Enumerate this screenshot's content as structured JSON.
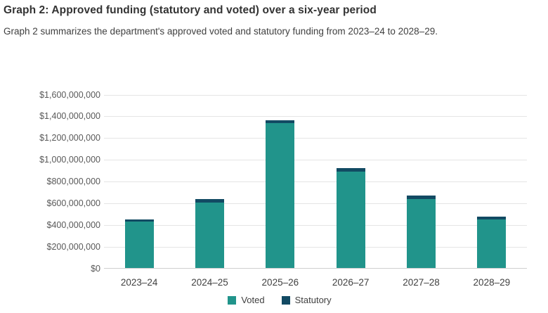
{
  "header": {
    "title": "Graph 2: Approved funding (statutory and voted) over a six-year period",
    "subtitle": "Graph 2 summarizes the department's approved voted and statutory funding from 2023–24 to 2028–29."
  },
  "chart_data": {
    "type": "bar",
    "stacked": true,
    "categories": [
      "2023–24",
      "2024–25",
      "2025–26",
      "2026–27",
      "2027–28",
      "2028–29"
    ],
    "series": [
      {
        "name": "Voted",
        "color": "#21948b",
        "values": [
          430000000,
          605000000,
          1335000000,
          890000000,
          635000000,
          445000000
        ]
      },
      {
        "name": "Statutory",
        "color": "#124a63",
        "values": [
          20000000,
          30000000,
          25000000,
          30000000,
          30000000,
          25000000
        ]
      }
    ],
    "totals": [
      450000000,
      635000000,
      1360000000,
      920000000,
      665000000,
      470000000
    ],
    "ylim": [
      0,
      1600000000
    ],
    "y_tick_step": 200000000,
    "y_tick_labels": [
      "$0",
      "$200,000,000",
      "$400,000,000",
      "$600,000,000",
      "$800,000,000",
      "$1,000,000,000",
      "$1,200,000,000",
      "$1,400,000,000",
      "$1,600,000,000"
    ],
    "grid": "horizontal",
    "legend_position": "bottom",
    "colors": {
      "gridline": "#e5e5e5",
      "axis_line": "#cfcfcf",
      "y_tick_text": "#595959",
      "x_tick_text": "#3f3f3f",
      "title_text": "#333333"
    }
  }
}
